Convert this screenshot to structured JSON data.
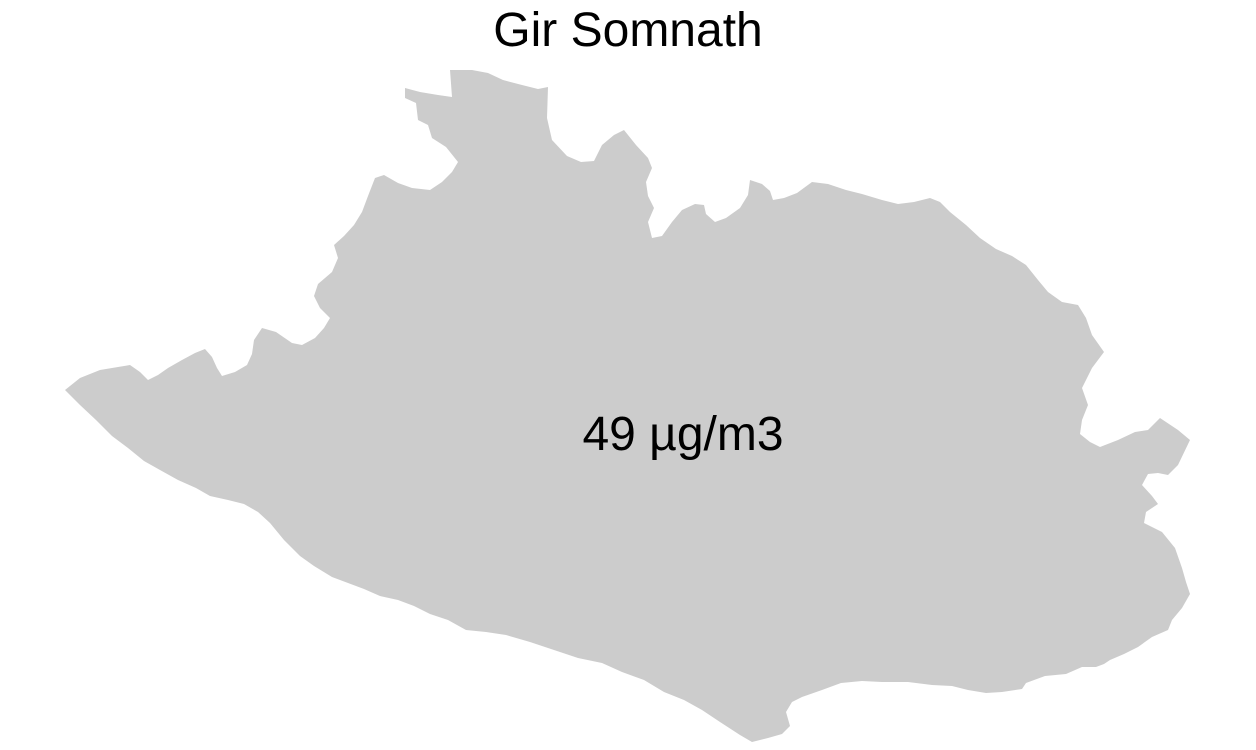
{
  "map": {
    "title": "Gir Somnath",
    "region_name": "Gir Somnath",
    "value_label": "49 µg/m3",
    "fill_color": "#cccccc",
    "background_color": "#ffffff",
    "text_color": "#000000"
  }
}
